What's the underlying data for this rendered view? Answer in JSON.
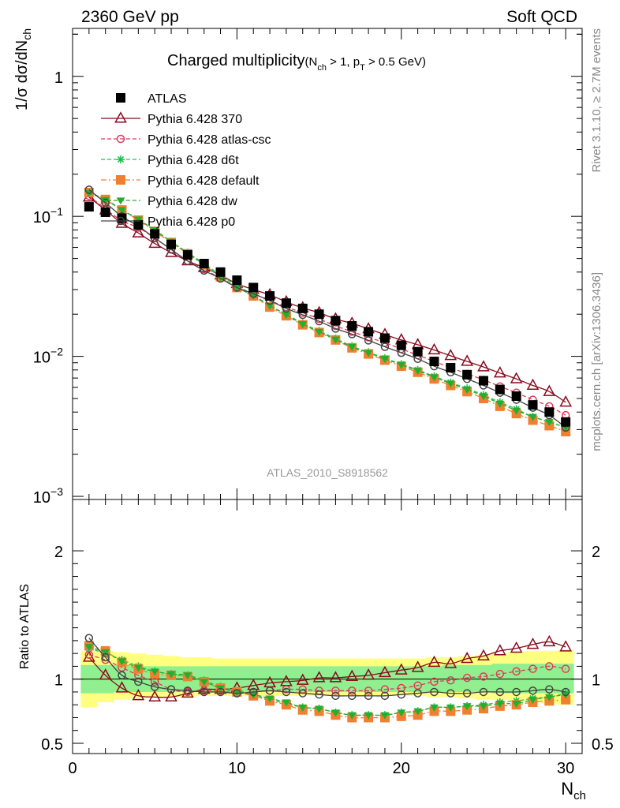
{
  "header": {
    "left_label": "2360 GeV pp",
    "right_label": "Soft QCD",
    "side_label_top": "Rivet 3.1.10, ≥ 2.7M events",
    "side_label_bottom": "mcplots.cern.ch [arXiv:1306.3436]"
  },
  "chart_data": [
    {
      "type": "scatter",
      "panel": "main",
      "title_main": "Charged multiplicity",
      "title_sub": "(N",
      "title_sub_1": "ch",
      "title_sub_2": " > 1, p",
      "title_sub_3": "T",
      "title_sub_4": " > 0.5 GeV)",
      "ylabel_a": "1/σ dσ/dN",
      "ylabel_sub": "ch",
      "yscale": "log",
      "ylim": [
        0.00095,
        2.2
      ],
      "xlim": [
        0,
        31
      ],
      "y_ticklabels": [
        {
          "value": 1,
          "base": "1",
          "exp": ""
        },
        {
          "value": 0.1,
          "base": "10",
          "exp": "−1"
        },
        {
          "value": 0.01,
          "base": "10",
          "exp": "−2"
        },
        {
          "value": 0.001,
          "base": "10",
          "exp": "−3"
        }
      ],
      "watermark": "ATLAS_2010_S8918562",
      "legend_position": "top-left",
      "x": [
        1,
        2,
        3,
        4,
        5,
        6,
        7,
        8,
        9,
        10,
        11,
        12,
        13,
        14,
        15,
        16,
        17,
        18,
        19,
        20,
        21,
        22,
        23,
        24,
        25,
        26,
        27,
        28,
        29,
        30
      ],
      "series": [
        {
          "name": "ATLAS",
          "color": "#000000",
          "marker": "square-filled",
          "values": [
            0.117,
            0.107,
            0.097,
            0.087,
            0.075,
            0.063,
            0.053,
            0.046,
            0.04,
            0.035,
            0.031,
            0.027,
            0.024,
            0.022,
            0.02,
            0.018,
            0.0165,
            0.015,
            0.0135,
            0.012,
            0.0108,
            0.0092,
            0.0083,
            0.0074,
            0.0067,
            0.0058,
            0.0052,
            0.0045,
            0.004,
            0.0034
          ]
        },
        {
          "name": "Pythia 6.428 370",
          "color": "#8b0a1e",
          "marker": "triangle-open",
          "line": "solid",
          "values": [
            0.137,
            0.111,
            0.089,
            0.076,
            0.064,
            0.055,
            0.048,
            0.043,
            0.038,
            0.033,
            0.03,
            0.0275,
            0.0245,
            0.0222,
            0.0205,
            0.0185,
            0.0172,
            0.0157,
            0.0143,
            0.0131,
            0.0121,
            0.0111,
            0.0101,
            0.0092,
            0.0084,
            0.0076,
            0.0069,
            0.0062,
            0.0056,
            0.0047
          ]
        },
        {
          "name": "Pythia 6.428 atlas-csc",
          "color": "#e03a5a",
          "marker": "circle-open",
          "line": "dashed",
          "values": [
            0.14,
            0.113,
            0.093,
            0.083,
            0.07,
            0.058,
            0.048,
            0.042,
            0.036,
            0.031,
            0.028,
            0.025,
            0.0225,
            0.0205,
            0.0185,
            0.0165,
            0.015,
            0.0137,
            0.0125,
            0.0113,
            0.0102,
            0.0092,
            0.0083,
            0.0075,
            0.0068,
            0.0061,
            0.0055,
            0.0049,
            0.0044,
            0.0038
          ]
        },
        {
          "name": "Pythia 6.428 d6t",
          "color": "#20c050",
          "marker": "star",
          "line": "dashed",
          "values": [
            0.148,
            0.132,
            0.112,
            0.095,
            0.079,
            0.066,
            0.055,
            0.046,
            0.038,
            0.032,
            0.0275,
            0.023,
            0.02,
            0.0172,
            0.0152,
            0.0134,
            0.0118,
            0.0107,
            0.0097,
            0.0088,
            0.008,
            0.0072,
            0.0065,
            0.0059,
            0.0053,
            0.0047,
            0.0042,
            0.0037,
            0.0034,
            0.0031
          ]
        },
        {
          "name": "Pythia 6.428 default",
          "color": "#f08030",
          "marker": "square-filled",
          "line": "dashdot",
          "values": [
            0.148,
            0.132,
            0.111,
            0.094,
            0.078,
            0.065,
            0.054,
            0.045,
            0.037,
            0.031,
            0.027,
            0.0225,
            0.0195,
            0.0168,
            0.0148,
            0.0131,
            0.0115,
            0.0104,
            0.0094,
            0.0085,
            0.0077,
            0.0069,
            0.0062,
            0.0056,
            0.005,
            0.0044,
            0.0039,
            0.0035,
            0.0032,
            0.0029
          ]
        },
        {
          "name": "Pythia 6.428 dw",
          "color": "#20b030",
          "marker": "triangle-down-filled",
          "line": "dashed",
          "values": [
            0.147,
            0.131,
            0.111,
            0.095,
            0.08,
            0.066,
            0.055,
            0.045,
            0.037,
            0.031,
            0.0272,
            0.023,
            0.0198,
            0.017,
            0.015,
            0.0132,
            0.0117,
            0.0106,
            0.0096,
            0.0087,
            0.0079,
            0.0071,
            0.0064,
            0.0058,
            0.0052,
            0.0046,
            0.0041,
            0.0037,
            0.0034,
            0.0031
          ]
        },
        {
          "name": "Pythia 6.428 p0",
          "color": "#444444",
          "marker": "circle-open",
          "line": "solid",
          "values": [
            0.155,
            0.125,
            0.1,
            0.085,
            0.07,
            0.058,
            0.048,
            0.041,
            0.036,
            0.031,
            0.028,
            0.025,
            0.022,
            0.0198,
            0.0178,
            0.0158,
            0.0144,
            0.013,
            0.0117,
            0.0106,
            0.0096,
            0.0085,
            0.0077,
            0.0069,
            0.0062,
            0.0055,
            0.0049,
            0.0043,
            0.0038,
            0.0031
          ]
        }
      ]
    },
    {
      "type": "line",
      "panel": "ratio",
      "ylabel": "Ratio to ATLAS",
      "xlabel_a": "N",
      "xlabel_sub": "ch",
      "ylim": [
        0.42,
        2.4
      ],
      "xlim": [
        0,
        31
      ],
      "x_ticklabels": [
        "0",
        "10",
        "20",
        "30"
      ],
      "y_ticklabels": [
        "0.5",
        "1",
        "2"
      ],
      "reference_line": 1,
      "band_outer": {
        "color": "#ffff80",
        "upper": [
          1.22,
          1.22,
          1.21,
          1.2,
          1.19,
          1.18,
          1.17,
          1.17,
          1.16,
          1.16,
          1.16,
          1.16,
          1.16,
          1.16,
          1.16,
          1.16,
          1.16,
          1.16,
          1.16,
          1.16,
          1.16,
          1.17,
          1.17,
          1.18,
          1.19,
          1.2,
          1.21,
          1.22,
          1.22,
          1.23
        ],
        "lower": [
          0.78,
          0.82,
          0.84,
          0.85,
          0.86,
          0.86,
          0.86,
          0.87,
          0.87,
          0.87,
          0.87,
          0.87,
          0.87,
          0.87,
          0.87,
          0.87,
          0.87,
          0.87,
          0.87,
          0.87,
          0.87,
          0.86,
          0.86,
          0.85,
          0.84,
          0.84,
          0.83,
          0.82,
          0.81,
          0.8
        ]
      },
      "band_inner": {
        "color": "#90f090",
        "upper": [
          1.11,
          1.11,
          1.11,
          1.1,
          1.1,
          1.1,
          1.1,
          1.1,
          1.1,
          1.1,
          1.1,
          1.1,
          1.1,
          1.1,
          1.1,
          1.1,
          1.1,
          1.1,
          1.1,
          1.1,
          1.1,
          1.1,
          1.11,
          1.11,
          1.11,
          1.12,
          1.12,
          1.12,
          1.12,
          1.12
        ],
        "lower": [
          0.89,
          0.89,
          0.9,
          0.9,
          0.9,
          0.9,
          0.9,
          0.9,
          0.9,
          0.9,
          0.9,
          0.9,
          0.9,
          0.9,
          0.9,
          0.9,
          0.9,
          0.9,
          0.9,
          0.9,
          0.9,
          0.9,
          0.9,
          0.9,
          0.9,
          0.89,
          0.89,
          0.89,
          0.89,
          0.89
        ]
      },
      "x": [
        1,
        2,
        3,
        4,
        5,
        6,
        7,
        8,
        9,
        10,
        11,
        12,
        13,
        14,
        15,
        16,
        17,
        18,
        19,
        20,
        21,
        22,
        23,
        24,
        25,
        26,
        27,
        28,
        29,
        30
      ],
      "series": [
        {
          "name": "Pythia 6.428 370",
          "color": "#8b0a1e",
          "marker": "triangle-open",
          "line": "solid",
          "values": [
            1.17,
            1.03,
            0.93,
            0.87,
            0.86,
            0.86,
            0.89,
            0.92,
            0.92,
            0.93,
            0.95,
            0.97,
            0.98,
            0.99,
            1.01,
            1.01,
            1.02,
            1.03,
            1.05,
            1.07,
            1.09,
            1.13,
            1.12,
            1.16,
            1.18,
            1.22,
            1.24,
            1.27,
            1.29,
            1.25
          ]
        },
        {
          "name": "Pythia 6.428 atlas-csc",
          "color": "#e03a5a",
          "marker": "circle-open",
          "line": "dashed",
          "values": [
            1.19,
            1.15,
            1.09,
            1.03,
            0.98,
            0.92,
            0.9,
            0.91,
            0.91,
            0.89,
            0.9,
            0.91,
            0.92,
            0.92,
            0.91,
            0.91,
            0.91,
            0.91,
            0.92,
            0.93,
            0.95,
            0.98,
            0.99,
            1.01,
            1.02,
            1.04,
            1.06,
            1.08,
            1.1,
            1.08
          ]
        },
        {
          "name": "Pythia 6.428 d6t",
          "color": "#20c050",
          "marker": "star",
          "line": "dashed",
          "values": [
            1.24,
            1.2,
            1.15,
            1.1,
            1.06,
            1.04,
            1.03,
            0.99,
            0.94,
            0.91,
            0.88,
            0.84,
            0.81,
            0.78,
            0.77,
            0.74,
            0.72,
            0.72,
            0.72,
            0.74,
            0.75,
            0.78,
            0.78,
            0.79,
            0.8,
            0.82,
            0.83,
            0.85,
            0.86,
            0.89
          ]
        },
        {
          "name": "Pythia 6.428 default",
          "color": "#f08030",
          "marker": "square-filled",
          "line": "dashdot",
          "values": [
            1.26,
            1.22,
            1.13,
            1.08,
            1.04,
            1.03,
            1.02,
            0.98,
            0.93,
            0.9,
            0.87,
            0.83,
            0.8,
            0.76,
            0.75,
            0.72,
            0.7,
            0.7,
            0.7,
            0.71,
            0.72,
            0.75,
            0.75,
            0.76,
            0.77,
            0.79,
            0.8,
            0.82,
            0.83,
            0.84
          ]
        },
        {
          "name": "Pythia 6.428 dw",
          "color": "#20b030",
          "marker": "triangle-down-filled",
          "line": "dashed",
          "values": [
            1.25,
            1.21,
            1.14,
            1.09,
            1.06,
            1.04,
            1.03,
            0.98,
            0.93,
            0.9,
            0.88,
            0.85,
            0.82,
            0.78,
            0.77,
            0.74,
            0.72,
            0.72,
            0.72,
            0.74,
            0.75,
            0.78,
            0.78,
            0.79,
            0.79,
            0.81,
            0.81,
            0.84,
            0.86,
            0.88
          ]
        },
        {
          "name": "Pythia 6.428 p0",
          "color": "#444444",
          "marker": "circle-open",
          "line": "solid",
          "values": [
            1.32,
            1.17,
            1.03,
            0.98,
            0.94,
            0.92,
            0.91,
            0.9,
            0.9,
            0.89,
            0.9,
            0.91,
            0.9,
            0.89,
            0.88,
            0.87,
            0.87,
            0.87,
            0.87,
            0.88,
            0.89,
            0.9,
            0.89,
            0.89,
            0.9,
            0.9,
            0.9,
            0.91,
            0.92,
            0.9
          ]
        }
      ]
    }
  ]
}
